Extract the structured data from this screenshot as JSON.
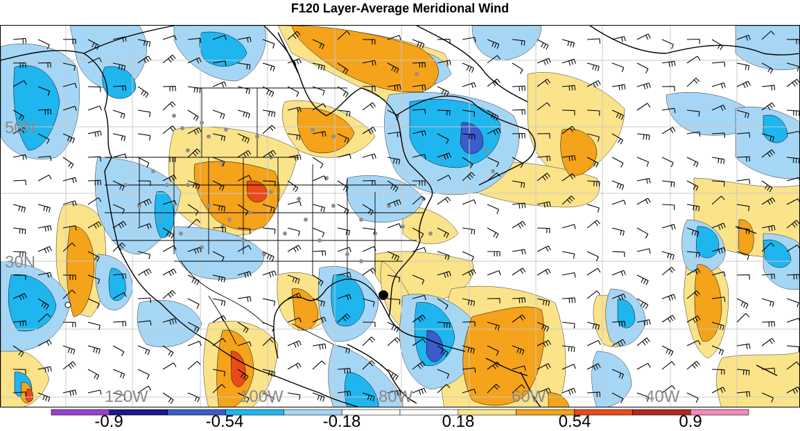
{
  "title": "F120 Layer-Average Meridional Wind",
  "lat_labels": [
    "50N",
    "30N"
  ],
  "lon_labels": [
    "120W",
    "100W",
    "80W",
    "60W",
    "40W"
  ],
  "colorbar": {
    "colors": [
      "#9b3fd1",
      "#1a1a8c",
      "#3a5ccc",
      "#1fb6ef",
      "#a6d6f5",
      "#ffffff",
      "#ffffff",
      "#fbe38a",
      "#f4a31a",
      "#ea4a1a",
      "#b5261e",
      "#f28ab8"
    ],
    "labels": [
      "-0.9",
      "-0.54",
      "-0.18",
      "0.18",
      "0.54",
      "0.9"
    ]
  },
  "palette": {
    "light_blue": "#a6d6f5",
    "blue": "#1fb6ef",
    "dark_blue": "#3a5ccc",
    "light_yellow": "#fbe38a",
    "orange": "#f4a31a",
    "red_orange": "#ea4a1a"
  }
}
